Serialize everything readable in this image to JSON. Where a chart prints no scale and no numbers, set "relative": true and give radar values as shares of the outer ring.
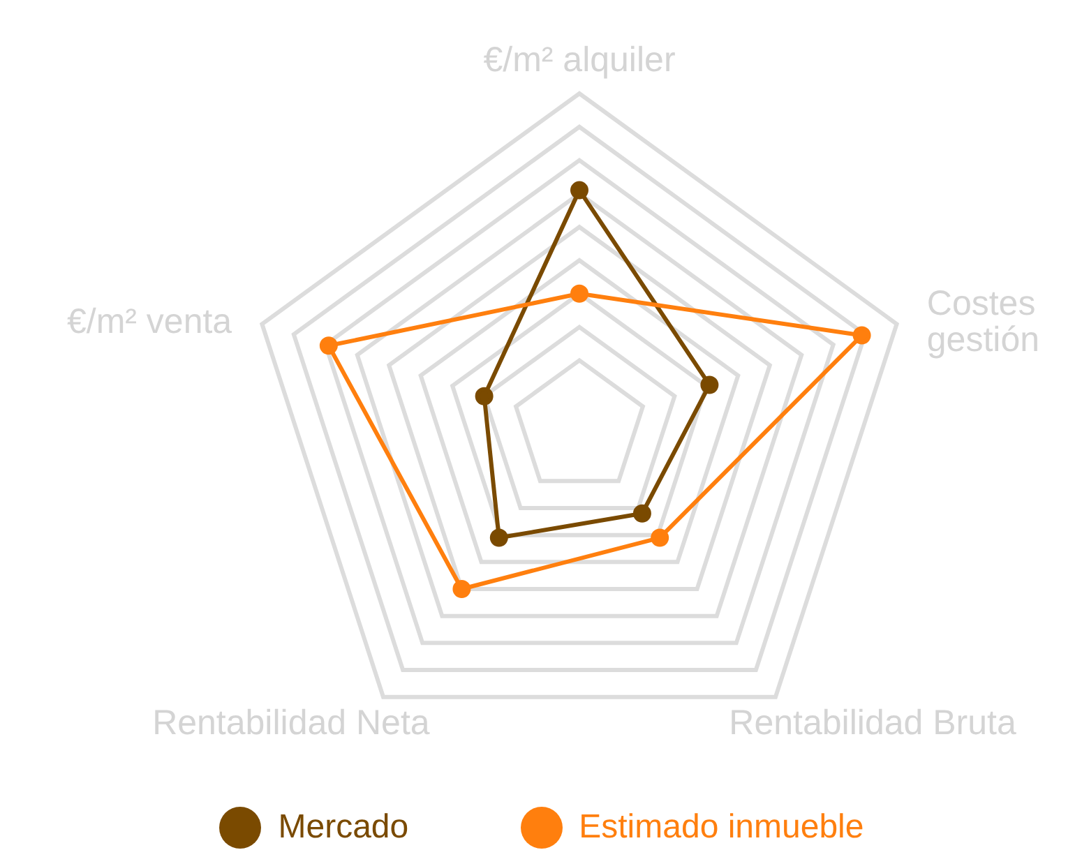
{
  "chart_data": {
    "type": "radar",
    "relative": true,
    "categories": [
      "€/m² alquiler",
      "Costes gestión",
      "Rentabilidad Bruta",
      "Rentabilidad Neta",
      "€/m² venta"
    ],
    "series": [
      {
        "name": "Mercado",
        "color": "#7a4a00",
        "values": [
          0.71,
          0.41,
          0.32,
          0.41,
          0.3
        ]
      },
      {
        "name": "Estimado inmueble",
        "color": "#ff7f0e",
        "values": [
          0.4,
          0.89,
          0.41,
          0.6,
          0.79
        ]
      }
    ],
    "grid": true,
    "legend": "bottom",
    "marker": "circle",
    "line_style": "solid"
  }
}
